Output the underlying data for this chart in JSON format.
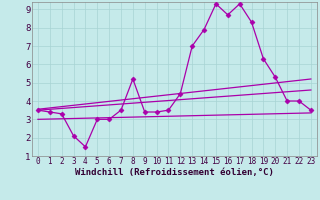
{
  "xlabel": "Windchill (Refroidissement éolien,°C)",
  "ylabel": "",
  "xlim": [
    -0.5,
    23.5
  ],
  "ylim": [
    1,
    9.4
  ],
  "xticks": [
    0,
    1,
    2,
    3,
    4,
    5,
    6,
    7,
    8,
    9,
    10,
    11,
    12,
    13,
    14,
    15,
    16,
    17,
    18,
    19,
    20,
    21,
    22,
    23
  ],
  "yticks": [
    1,
    2,
    3,
    4,
    5,
    6,
    7,
    8,
    9
  ],
  "background_color": "#c5eaea",
  "grid_color": "#a8d4d4",
  "line_color": "#aa00aa",
  "line1_x": [
    0,
    1,
    2,
    3,
    4,
    5,
    6,
    7,
    8,
    9,
    10,
    11,
    12,
    13,
    14,
    15,
    16,
    17,
    18,
    19,
    20,
    21,
    22,
    23
  ],
  "line1_y": [
    3.5,
    3.4,
    3.3,
    2.1,
    1.5,
    3.0,
    3.0,
    3.5,
    5.2,
    3.4,
    3.4,
    3.5,
    4.4,
    7.0,
    7.9,
    9.3,
    8.7,
    9.3,
    8.3,
    6.3,
    5.3,
    4.0,
    4.0,
    3.5
  ],
  "line2_x": [
    0,
    23
  ],
  "line2_y": [
    3.55,
    5.2
  ],
  "line3_x": [
    0,
    23
  ],
  "line3_y": [
    3.5,
    4.6
  ],
  "line4_x": [
    0,
    23
  ],
  "line4_y": [
    3.0,
    3.35
  ],
  "font_size_tick": 5.5,
  "font_size_xlabel": 6.5
}
